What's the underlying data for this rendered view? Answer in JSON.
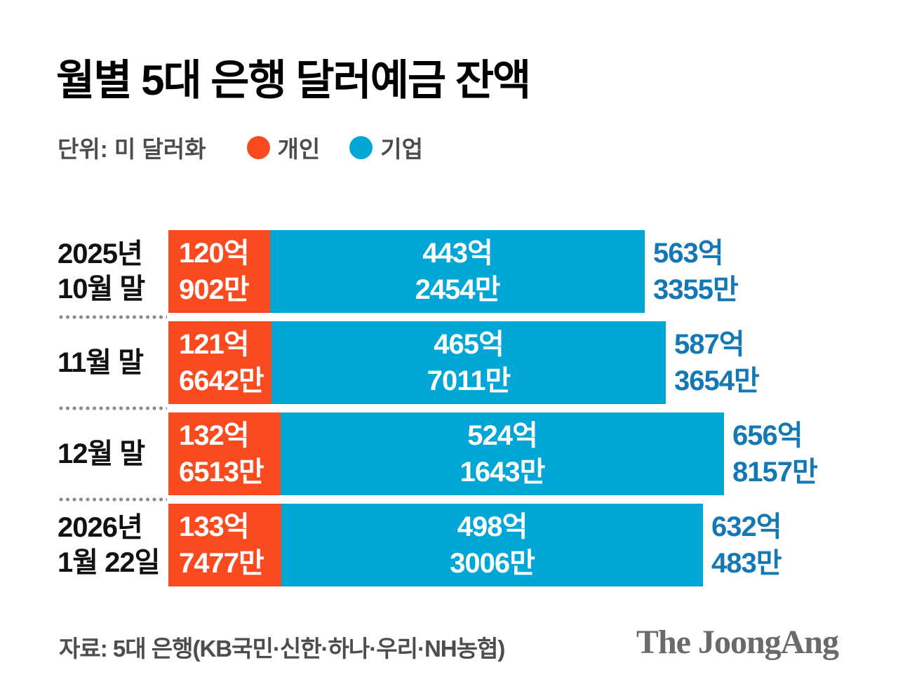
{
  "page": {
    "title": "월별 5대 은행 달러예금 잔액",
    "unit_label": "단위: 미 달러화",
    "source": "자료: 5대 은행(KB국민·신한·하나·우리·NH농협)",
    "logo": "The JoongAng"
  },
  "legend": [
    {
      "label": "개인"
    },
    {
      "label": "기업"
    }
  ],
  "colors": {
    "personal": "#FA4A1F",
    "corporate": "#00A6D5",
    "total_text": "#1478B5",
    "title_text": "#000000",
    "muted_text": "#4D4D4D",
    "logo_text": "#6A6A6A",
    "separator_dot": "#8C8C8C"
  },
  "rows": [
    {
      "label": "2025년\n10월 말",
      "personal_label": "120억\n902만",
      "corporate_label": "443억\n2454만",
      "total_label": "563억\n3355만"
    },
    {
      "label": "11월 말",
      "personal_label": "121억\n6642만",
      "corporate_label": "465억\n7011만",
      "total_label": "587억\n3654만"
    },
    {
      "label": "12월 말",
      "personal_label": "132억\n6513만",
      "corporate_label": "524억\n1643만",
      "total_label": "656억\n8157만"
    },
    {
      "label": "2026년\n1월 22일",
      "personal_label": "133억\n7477만",
      "corporate_label": "498억\n3006만",
      "total_label": "632억\n483만"
    }
  ],
  "chart_data": {
    "type": "bar",
    "orientation": "horizontal",
    "stacked": true,
    "title": "월별 5대 은행 달러예금 잔액",
    "unit_note": "단위: 미 달러화",
    "categories": [
      "2025년 10월 말",
      "11월 말",
      "12월 말",
      "2026년 1월 22일"
    ],
    "series": [
      {
        "name": "개인",
        "color": "#FA4A1F",
        "values_100m_usd": [
          120.0902,
          121.6642,
          132.6513,
          133.7477
        ],
        "labels": [
          "120억 902만",
          "121억 6642만",
          "132억 6513만",
          "133억 7477만"
        ]
      },
      {
        "name": "기업",
        "color": "#00A6D5",
        "values_100m_usd": [
          443.2454,
          465.7011,
          524.1643,
          498.3006
        ],
        "labels": [
          "443억 2454만",
          "465억 7011만",
          "524억 1643만",
          "498억 3006만"
        ]
      }
    ],
    "totals": {
      "values_100m_usd": [
        563.3355,
        587.3654,
        656.8157,
        632.0483
      ],
      "labels": [
        "563억 3355만",
        "587억 3654만",
        "656억 8157만",
        "632억 483만"
      ]
    },
    "legend_position": "top",
    "grid": false,
    "source": "자료: 5대 은행(KB국민·신한·하나·우리·NH농협)"
  }
}
